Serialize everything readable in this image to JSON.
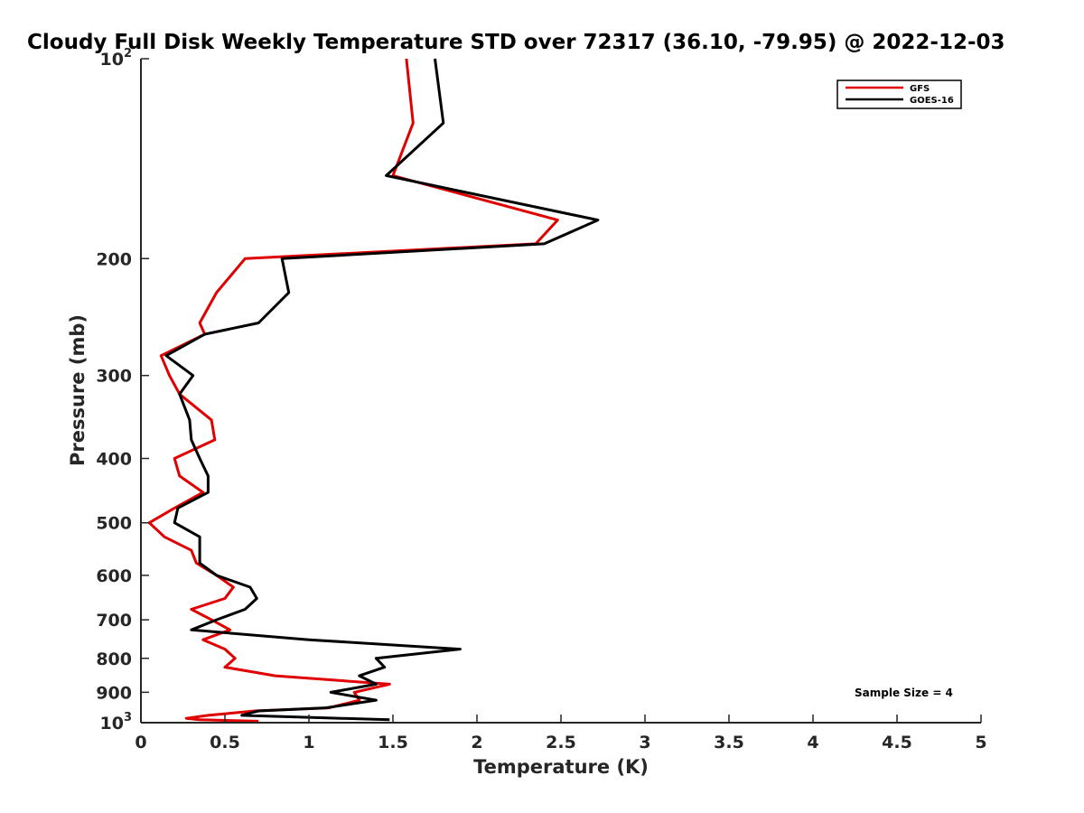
{
  "chart_data": {
    "type": "line",
    "title": "Cloudy Full Disk Weekly Temperature STD over 72317 (36.10, -79.95) @ 2022-12-03",
    "xlabel": "Temperature (K)",
    "ylabel": "Pressure (mb)",
    "xlim": [
      0,
      5
    ],
    "ylim": [
      100,
      1000
    ],
    "y_scale": "log",
    "y_reversed": true,
    "x_ticks": [
      "0",
      "0.5",
      "1",
      "1.5",
      "2",
      "2.5",
      "3",
      "3.5",
      "4",
      "4.5",
      "5"
    ],
    "y_ticks": [
      {
        "value": 100,
        "base": "10",
        "exp": "2"
      },
      {
        "value": 200,
        "label": "200"
      },
      {
        "value": 300,
        "label": "300"
      },
      {
        "value": 400,
        "label": "400"
      },
      {
        "value": 500,
        "label": "500"
      },
      {
        "value": 600,
        "label": "600"
      },
      {
        "value": 700,
        "label": "700"
      },
      {
        "value": 800,
        "label": "800"
      },
      {
        "value": 900,
        "label": "900"
      },
      {
        "value": 1000,
        "base": "10",
        "exp": "3"
      }
    ],
    "legend_position": "top-right",
    "annotation": "Sample Size = 4",
    "series": [
      {
        "name": "GFS",
        "color": "#e00000",
        "points": [
          [
            1.58,
            100
          ],
          [
            1.62,
            125
          ],
          [
            1.5,
            150
          ],
          [
            2.48,
            175
          ],
          [
            2.35,
            190
          ],
          [
            0.62,
            200
          ],
          [
            0.45,
            225
          ],
          [
            0.35,
            250
          ],
          [
            0.38,
            260
          ],
          [
            0.12,
            280
          ],
          [
            0.17,
            300
          ],
          [
            0.23,
            320
          ],
          [
            0.42,
            350
          ],
          [
            0.44,
            375
          ],
          [
            0.2,
            400
          ],
          [
            0.23,
            425
          ],
          [
            0.37,
            450
          ],
          [
            0.2,
            475
          ],
          [
            0.05,
            500
          ],
          [
            0.14,
            525
          ],
          [
            0.3,
            550
          ],
          [
            0.33,
            575
          ],
          [
            0.45,
            600
          ],
          [
            0.55,
            625
          ],
          [
            0.5,
            650
          ],
          [
            0.3,
            675
          ],
          [
            0.42,
            700
          ],
          [
            0.53,
            725
          ],
          [
            0.37,
            750
          ],
          [
            0.5,
            775
          ],
          [
            0.56,
            800
          ],
          [
            0.5,
            825
          ],
          [
            0.8,
            850
          ],
          [
            1.48,
            875
          ],
          [
            1.27,
            900
          ],
          [
            1.3,
            925
          ],
          [
            1.12,
            950
          ],
          [
            0.68,
            960
          ],
          [
            0.4,
            975
          ],
          [
            0.27,
            985
          ],
          [
            0.35,
            990
          ],
          [
            0.7,
            995
          ]
        ]
      },
      {
        "name": "GOES-16",
        "color": "#000000",
        "points": [
          [
            1.75,
            100
          ],
          [
            1.8,
            125
          ],
          [
            1.46,
            150
          ],
          [
            2.72,
            175
          ],
          [
            2.4,
            190
          ],
          [
            0.84,
            200
          ],
          [
            0.88,
            225
          ],
          [
            0.7,
            250
          ],
          [
            0.38,
            260
          ],
          [
            0.15,
            280
          ],
          [
            0.31,
            300
          ],
          [
            0.23,
            320
          ],
          [
            0.29,
            350
          ],
          [
            0.3,
            375
          ],
          [
            0.35,
            400
          ],
          [
            0.4,
            425
          ],
          [
            0.4,
            450
          ],
          [
            0.22,
            475
          ],
          [
            0.2,
            500
          ],
          [
            0.35,
            525
          ],
          [
            0.35,
            550
          ],
          [
            0.35,
            575
          ],
          [
            0.45,
            600
          ],
          [
            0.65,
            625
          ],
          [
            0.69,
            650
          ],
          [
            0.62,
            675
          ],
          [
            0.45,
            700
          ],
          [
            0.3,
            725
          ],
          [
            1.0,
            750
          ],
          [
            1.9,
            775
          ],
          [
            1.4,
            800
          ],
          [
            1.45,
            825
          ],
          [
            1.3,
            850
          ],
          [
            1.4,
            875
          ],
          [
            1.13,
            900
          ],
          [
            1.4,
            925
          ],
          [
            1.1,
            950
          ],
          [
            0.7,
            960
          ],
          [
            0.6,
            975
          ],
          [
            1.48,
            990
          ]
        ]
      }
    ]
  }
}
